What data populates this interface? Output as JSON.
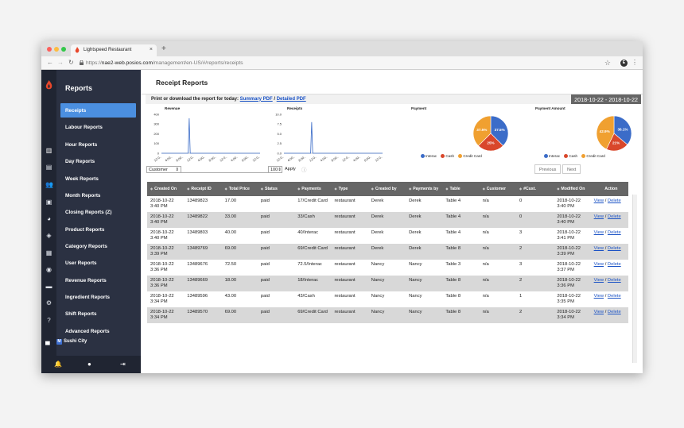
{
  "browser": {
    "tab_title": "Lightspeed Restaurant",
    "url_prefix": "https://",
    "url_host": "nae2-web.posios.com",
    "url_path": "/management/en-US/#/reports/receipts",
    "ext_letter": "E"
  },
  "sidebar": {
    "title": "Reports",
    "items": [
      {
        "label": "Receipts"
      },
      {
        "label": "Labour Reports"
      },
      {
        "label": "Hour Reports"
      },
      {
        "label": "Day Reports"
      },
      {
        "label": "Week Reports"
      },
      {
        "label": "Month Reports"
      },
      {
        "label": "Closing Reports (Z)"
      },
      {
        "label": "Product Reports"
      },
      {
        "label": "Category Reports"
      },
      {
        "label": "User Reports"
      },
      {
        "label": "Revenue Reports"
      },
      {
        "label": "Ingredient Reports"
      },
      {
        "label": "Shift Reports"
      },
      {
        "label": "Advanced Reports"
      }
    ],
    "store_badge": "M",
    "store_name": "Sushi City"
  },
  "main": {
    "title": "Receipt Reports",
    "print_text": "Print or download the report for today:",
    "summary_link": "Summary PDF",
    "separator": " / ",
    "detailed_link": "Detailed PDF",
    "date_range": "2018-10-22 - 2018-10-22"
  },
  "filter": {
    "select_value": "Customer",
    "count_value": "100",
    "apply_label": "Apply"
  },
  "pager": {
    "previous": "Previous",
    "next": "Next"
  },
  "colors": {
    "interac": "#3b6cc8",
    "cash": "#d9472b",
    "credit_card": "#f0a030",
    "sidebar_active": "#4b8fe0",
    "link": "#1a52c5"
  },
  "chart_data": [
    {
      "type": "line",
      "title": "Revenue",
      "ylim": [
        0,
        400
      ],
      "y_ticks": [
        "0",
        "100",
        "200",
        "300",
        "400"
      ],
      "x_tick_labels": [
        "12:0..",
        "4:00..",
        "8:00..",
        "12:0..",
        "4:00..",
        "8:00..",
        "12:0..",
        "4:00..",
        "8:00..",
        "12:0.."
      ],
      "peak_value": 360
    },
    {
      "type": "line",
      "title": "Receipts",
      "ylim": [
        0,
        10
      ],
      "y_ticks": [
        "0.0",
        "2.5",
        "5.0",
        "7.5",
        "10.0"
      ],
      "x_tick_labels": [
        "12:0..",
        "4:00..",
        "8:00..",
        "12:0..",
        "4:00..",
        "8:00..",
        "12:0..",
        "4:00..",
        "8:00..",
        "12:0.."
      ],
      "peak_value": 8
    },
    {
      "type": "pie",
      "title": "Payment",
      "slices": [
        {
          "name": "Interac",
          "value": 37.5,
          "label": "37.5%"
        },
        {
          "name": "Cash",
          "value": 25,
          "label": "25%"
        },
        {
          "name": "Credit Card",
          "value": 37.5,
          "label": "37.5%"
        }
      ]
    },
    {
      "type": "pie",
      "title": "Payment Amount",
      "slices": [
        {
          "name": "Interac",
          "value": 36.1,
          "label": "36.1%"
        },
        {
          "name": "Cash",
          "value": 21,
          "label": "21%"
        },
        {
          "name": "Credit Card",
          "value": 42.9,
          "label": "42.9%"
        }
      ]
    }
  ],
  "table": {
    "headers": [
      "Created On",
      "Receipt ID",
      "Total Price",
      "Status",
      "Payments",
      "Type",
      "Created by",
      "Payments by",
      "Table",
      "Customer",
      "#Cust.",
      "Modified On",
      "Action"
    ],
    "rows": [
      [
        "2018-10-22 3:40 PM",
        "13489823",
        "17.00",
        "paid",
        "17/Credit Card",
        "restaurant",
        "Derek",
        "Derek",
        "Table 4",
        "n/a",
        "0",
        "2018-10-22 3:40 PM"
      ],
      [
        "2018-10-22 3:40 PM",
        "13489822",
        "33.00",
        "paid",
        "33/Cash",
        "restaurant",
        "Derek",
        "Derek",
        "Table 4",
        "n/a",
        "0",
        "2018-10-22 3:40 PM"
      ],
      [
        "2018-10-22 3:40 PM",
        "13489803",
        "40.00",
        "paid",
        "40/Interac",
        "restaurant",
        "Derek",
        "Derek",
        "Table 4",
        "n/a",
        "3",
        "2018-10-22 3:41 PM"
      ],
      [
        "2018-10-22 3:39 PM",
        "13489769",
        "69.00",
        "paid",
        "69/Credit Card",
        "restaurant",
        "Derek",
        "Derek",
        "Table 8",
        "n/a",
        "2",
        "2018-10-22 3:39 PM"
      ],
      [
        "2018-10-22 3:36 PM",
        "13489676",
        "72.50",
        "paid",
        "72.5/Interac",
        "restaurant",
        "Nancy",
        "Nancy",
        "Table 3",
        "n/a",
        "3",
        "2018-10-22 3:37 PM"
      ],
      [
        "2018-10-22 3:36 PM",
        "13489669",
        "18.00",
        "paid",
        "18/Interac",
        "restaurant",
        "Nancy",
        "Nancy",
        "Table 8",
        "n/a",
        "2",
        "2018-10-22 3:36 PM"
      ],
      [
        "2018-10-22 3:34 PM",
        "13489596",
        "43.00",
        "paid",
        "43/Cash",
        "restaurant",
        "Nancy",
        "Nancy",
        "Table 8",
        "n/a",
        "1",
        "2018-10-22 3:35 PM"
      ],
      [
        "2018-10-22 3:34 PM",
        "13489570",
        "69.00",
        "paid",
        "69/Credit Card",
        "restaurant",
        "Nancy",
        "Nancy",
        "Table 8",
        "n/a",
        "2",
        "2018-10-22 3:34 PM"
      ]
    ],
    "view_label": "View",
    "action_sep": " / ",
    "delete_label": "Delete"
  }
}
